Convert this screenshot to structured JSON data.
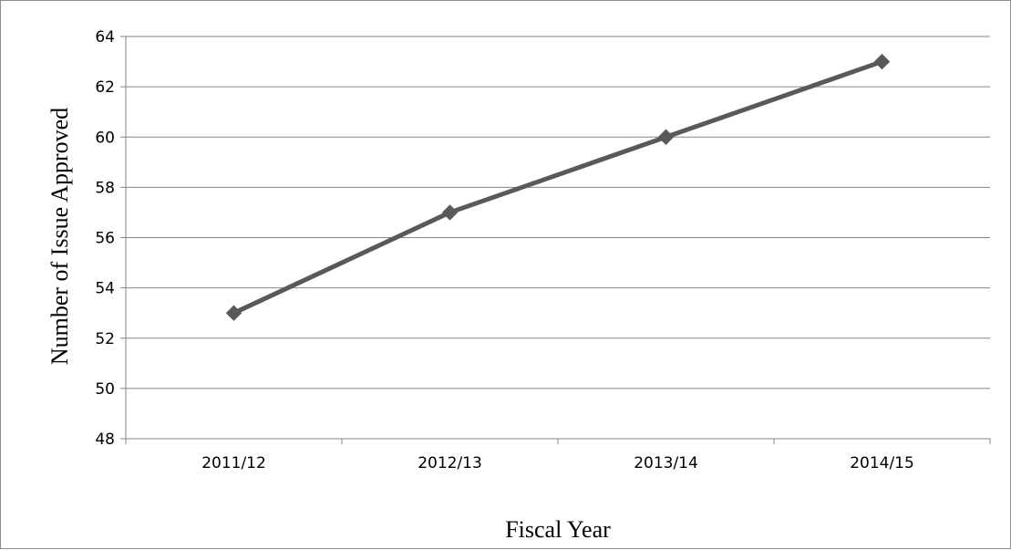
{
  "chart_data": {
    "type": "line",
    "title": "",
    "xlabel": "Fiscal Year",
    "ylabel": "Number of Issue Approved",
    "categories": [
      "2011/12",
      "2012/13",
      "2013/14",
      "2014/15"
    ],
    "series": [
      {
        "values": [
          53,
          57,
          60,
          63
        ]
      }
    ],
    "ylim": [
      48,
      64
    ],
    "yticks": [
      "48",
      "50",
      "52",
      "54",
      "56",
      "58",
      "60",
      "62",
      "64"
    ],
    "grid": true,
    "marker": "diamond",
    "colors": {
      "line": "#595959",
      "grid": "#868686",
      "axis": "#868686"
    }
  }
}
